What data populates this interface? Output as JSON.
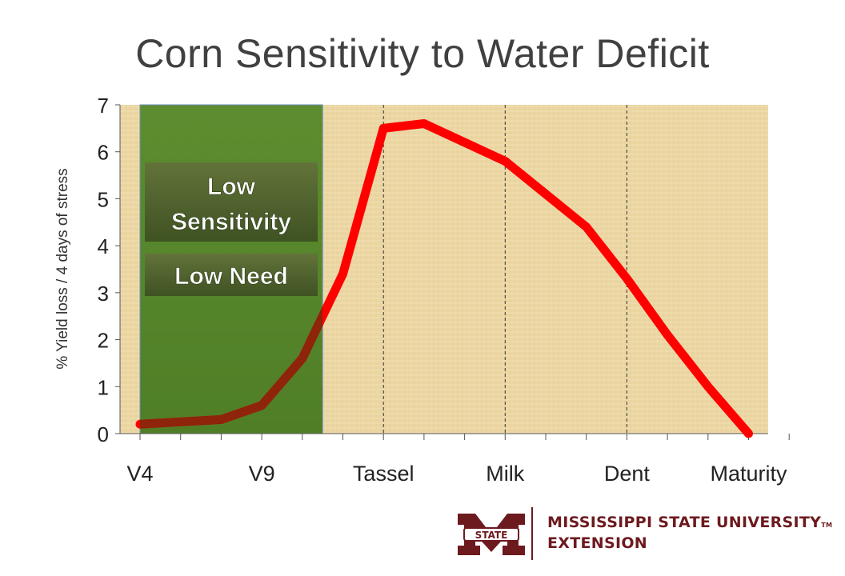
{
  "slide": {
    "title": "Corn Sensitivity to Water Deficit"
  },
  "chart_data": {
    "type": "line",
    "title": "Corn Sensitivity to Water Deficit",
    "ylabel": "% Yield loss / 4 days of stress",
    "xlabel": "",
    "ylim": [
      0,
      7
    ],
    "yticks": [
      0,
      1,
      2,
      3,
      4,
      5,
      6,
      7
    ],
    "xlim": [
      0,
      16
    ],
    "xtick_positions": [
      0,
      1,
      2,
      3,
      4,
      5,
      6,
      7,
      8,
      9,
      10,
      11,
      12,
      13,
      14,
      15,
      16
    ],
    "categories": [
      {
        "label": "V4",
        "x": 0
      },
      {
        "label": "V9",
        "x": 3
      },
      {
        "label": "Tassel",
        "x": 6
      },
      {
        "label": "Milk",
        "x": 9
      },
      {
        "label": "Dent",
        "x": 12
      },
      {
        "label": "Maturity",
        "x": 15
      }
    ],
    "stage_lines_x": [
      6,
      9,
      12
    ],
    "series": [
      {
        "color": "#ff0000",
        "points": [
          {
            "x": 0,
            "y": 0.2
          },
          {
            "x": 1,
            "y": 0.25
          },
          {
            "x": 2,
            "y": 0.3
          },
          {
            "x": 3,
            "y": 0.6
          },
          {
            "x": 4,
            "y": 1.6
          },
          {
            "x": 5,
            "y": 3.4
          },
          {
            "x": 6,
            "y": 6.5
          },
          {
            "x": 7,
            "y": 6.6
          },
          {
            "x": 8,
            "y": 6.2
          },
          {
            "x": 9,
            "y": 5.8
          },
          {
            "x": 10,
            "y": 5.1
          },
          {
            "x": 11,
            "y": 4.4
          },
          {
            "x": 12,
            "y": 3.3
          },
          {
            "x": 13,
            "y": 2.1
          },
          {
            "x": 14,
            "y": 1.0
          },
          {
            "x": 15,
            "y": 0.0
          }
        ]
      }
    ],
    "highlight_region": {
      "x_range": [
        0,
        4.5
      ],
      "color": "#5c8a2e",
      "labels": [
        "Low Sensitivity",
        "Low Need"
      ]
    },
    "plot_background": "#ecd7a4",
    "grid": false
  },
  "logo": {
    "line1": "MISSISSIPPI STATE UNIVERSITY",
    "tm": "TM",
    "line2": "EXTENSION",
    "badge": "STATE",
    "color": "#6d1a1f"
  }
}
